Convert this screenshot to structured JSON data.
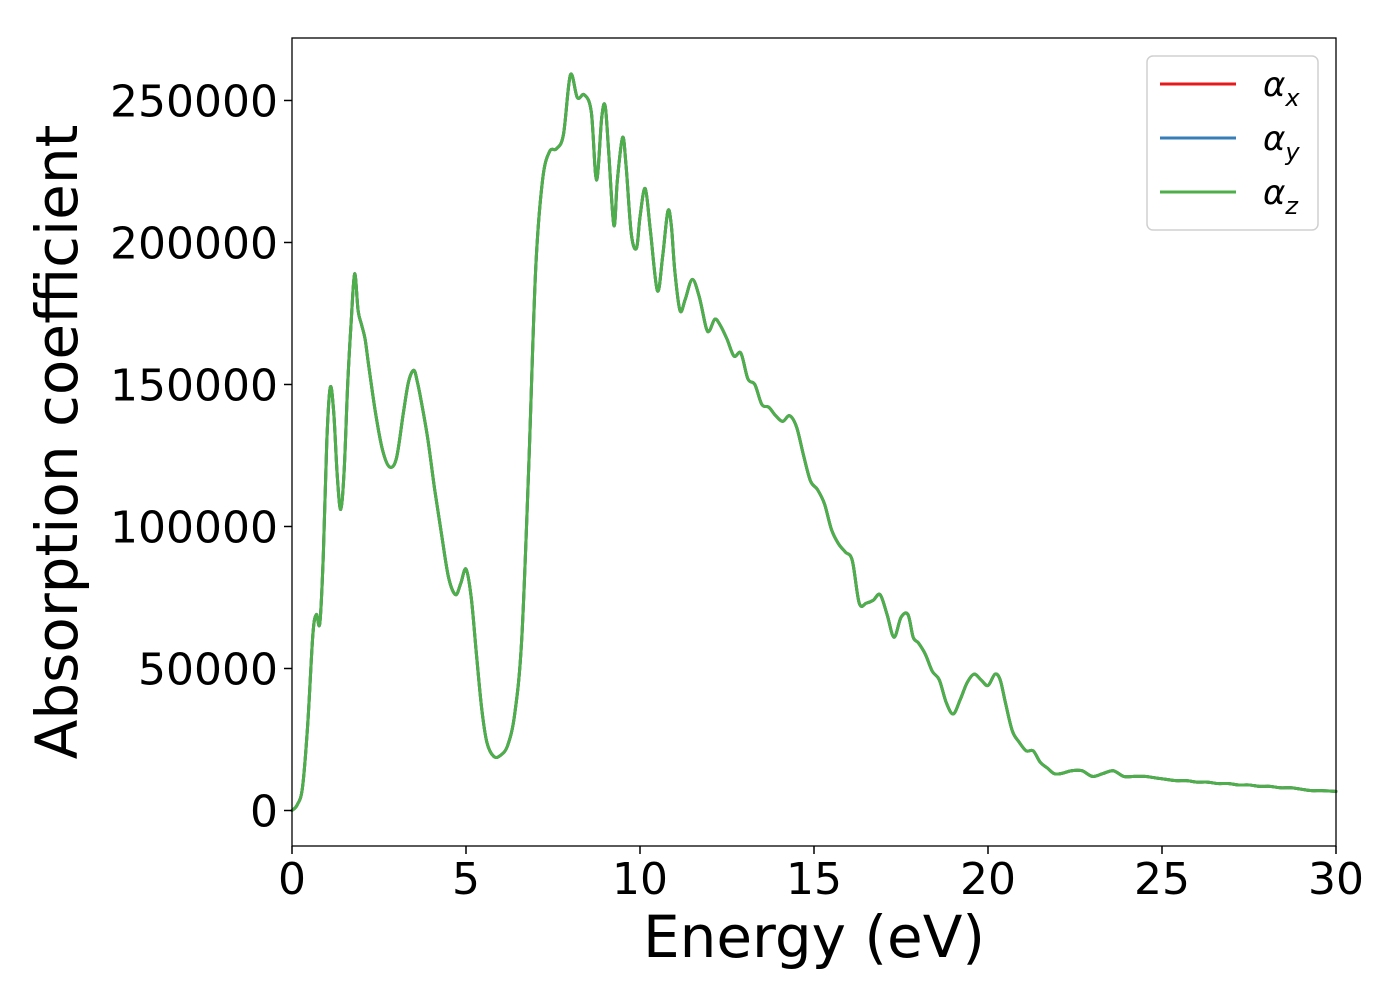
{
  "chart_data": {
    "type": "line",
    "title": "",
    "xlabel": "Energy (eV)",
    "ylabel": "Absorption coefficient",
    "xlim": [
      0,
      30
    ],
    "ylim": [
      -12500,
      272000
    ],
    "xticks": [
      0,
      5,
      10,
      15,
      20,
      25,
      30
    ],
    "yticks": [
      0,
      50000,
      100000,
      150000,
      200000,
      250000
    ],
    "xtick_labels": [
      "0",
      "5",
      "10",
      "15",
      "20",
      "25",
      "30"
    ],
    "ytick_labels": [
      "0",
      "50000",
      "100000",
      "150000",
      "200000",
      "250000"
    ],
    "grid": false,
    "legend_position": "top-right",
    "x": [
      0.0,
      0.15,
      0.3,
      0.45,
      0.6,
      0.7,
      0.8,
      0.9,
      1.0,
      1.1,
      1.2,
      1.3,
      1.4,
      1.5,
      1.6,
      1.7,
      1.8,
      1.9,
      2.0,
      2.1,
      2.2,
      2.4,
      2.6,
      2.8,
      3.0,
      3.2,
      3.35,
      3.5,
      3.6,
      3.7,
      3.9,
      4.1,
      4.3,
      4.5,
      4.7,
      4.85,
      5.0,
      5.15,
      5.3,
      5.45,
      5.6,
      5.8,
      6.0,
      6.2,
      6.4,
      6.6,
      6.8,
      7.0,
      7.2,
      7.4,
      7.6,
      7.8,
      8.0,
      8.2,
      8.4,
      8.6,
      8.75,
      8.9,
      9.0,
      9.1,
      9.25,
      9.35,
      9.5,
      9.6,
      9.75,
      9.9,
      10.0,
      10.15,
      10.3,
      10.5,
      10.65,
      10.8,
      10.9,
      11.0,
      11.15,
      11.3,
      11.5,
      11.7,
      11.9,
      12.0,
      12.15,
      12.3,
      12.5,
      12.7,
      12.9,
      13.1,
      13.3,
      13.5,
      13.7,
      13.9,
      14.1,
      14.3,
      14.5,
      14.7,
      14.9,
      15.1,
      15.3,
      15.5,
      15.7,
      15.9,
      16.1,
      16.3,
      16.5,
      16.7,
      16.9,
      17.1,
      17.3,
      17.5,
      17.7,
      17.85,
      18.0,
      18.2,
      18.4,
      18.6,
      18.8,
      19.0,
      19.2,
      19.4,
      19.6,
      19.8,
      20.0,
      20.2,
      20.35,
      20.5,
      20.7,
      20.9,
      21.1,
      21.3,
      21.5,
      21.7,
      21.9,
      22.1,
      22.4,
      22.7,
      23.0,
      23.3,
      23.6,
      23.9,
      24.2,
      24.5,
      24.8,
      25.1,
      25.4,
      25.7,
      26.0,
      26.3,
      26.6,
      26.9,
      27.2,
      27.5,
      27.8,
      28.1,
      28.4,
      28.7,
      29.0,
      29.3,
      29.6,
      30.0
    ],
    "series": [
      {
        "name": "α_x",
        "label_main": "α",
        "label_sub": "x",
        "color": "#e41a1c",
        "values": [
          0,
          2000,
          8000,
          30000,
          62000,
          69000,
          66000,
          90000,
          130000,
          149000,
          140000,
          118000,
          106000,
          120000,
          150000,
          172000,
          189000,
          176000,
          171000,
          166000,
          157000,
          140000,
          127000,
          121000,
          124000,
          140000,
          151000,
          155000,
          151000,
          145000,
          131000,
          113000,
          97000,
          82000,
          76000,
          80000,
          85000,
          75000,
          55000,
          36000,
          24000,
          19000,
          19500,
          23000,
          34000,
          60000,
          120000,
          190000,
          222000,
          232000,
          233000,
          238000,
          259000,
          251000,
          252000,
          246000,
          222000,
          244000,
          248000,
          232000,
          206000,
          222000,
          237000,
          227000,
          203000,
          198000,
          209000,
          219000,
          204000,
          183000,
          195000,
          211000,
          206000,
          190000,
          176000,
          180000,
          187000,
          181000,
          170000,
          169000,
          173000,
          171000,
          166000,
          160000,
          161000,
          152000,
          150000,
          143000,
          142000,
          139000,
          137000,
          139000,
          135000,
          125000,
          116000,
          113000,
          108000,
          99000,
          94000,
          91000,
          88000,
          73000,
          73000,
          74000,
          76000,
          69000,
          61000,
          68000,
          69000,
          61000,
          59000,
          55000,
          49000,
          46000,
          38000,
          34000,
          39000,
          45000,
          48000,
          46000,
          44000,
          48000,
          46000,
          38000,
          28000,
          24000,
          21000,
          21000,
          17000,
          15000,
          13000,
          13000,
          14000,
          14000,
          12000,
          13000,
          14000,
          12000,
          12000,
          12000,
          11500,
          11000,
          10500,
          10500,
          10000,
          10000,
          9500,
          9500,
          9000,
          9000,
          8500,
          8500,
          8000,
          8000,
          7500,
          7000,
          7000,
          6700
        ]
      },
      {
        "name": "α_y",
        "label_main": "α",
        "label_sub": "y",
        "color": "#377eb8",
        "values": [
          0,
          2000,
          8000,
          30000,
          62000,
          69000,
          66000,
          90000,
          130000,
          149000,
          140000,
          118000,
          106000,
          120000,
          150000,
          172000,
          189000,
          176000,
          171000,
          166000,
          157000,
          140000,
          127000,
          121000,
          124000,
          140000,
          151000,
          155000,
          151000,
          145000,
          131000,
          113000,
          97000,
          82000,
          76000,
          80000,
          85000,
          75000,
          55000,
          36000,
          24000,
          19000,
          19500,
          23000,
          34000,
          60000,
          120000,
          190000,
          222000,
          232000,
          233000,
          238000,
          259000,
          251000,
          252000,
          246000,
          222000,
          244000,
          248000,
          232000,
          206000,
          222000,
          237000,
          227000,
          203000,
          198000,
          209000,
          219000,
          204000,
          183000,
          195000,
          211000,
          206000,
          190000,
          176000,
          180000,
          187000,
          181000,
          170000,
          169000,
          173000,
          171000,
          166000,
          160000,
          161000,
          152000,
          150000,
          143000,
          142000,
          139000,
          137000,
          139000,
          135000,
          125000,
          116000,
          113000,
          108000,
          99000,
          94000,
          91000,
          88000,
          73000,
          73000,
          74000,
          76000,
          69000,
          61000,
          68000,
          69000,
          61000,
          59000,
          55000,
          49000,
          46000,
          38000,
          34000,
          39000,
          45000,
          48000,
          46000,
          44000,
          48000,
          46000,
          38000,
          28000,
          24000,
          21000,
          21000,
          17000,
          15000,
          13000,
          13000,
          14000,
          14000,
          12000,
          13000,
          14000,
          12000,
          12000,
          12000,
          11500,
          11000,
          10500,
          10500,
          10000,
          10000,
          9500,
          9500,
          9000,
          9000,
          8500,
          8500,
          8000,
          8000,
          7500,
          7000,
          7000,
          6700
        ]
      },
      {
        "name": "α_z",
        "label_main": "α",
        "label_sub": "z",
        "color": "#4daf4a",
        "values": [
          0,
          2000,
          8000,
          30000,
          62000,
          69000,
          66000,
          90000,
          130000,
          149000,
          140000,
          118000,
          106000,
          120000,
          150000,
          172000,
          189000,
          176000,
          171000,
          166000,
          157000,
          140000,
          127000,
          121000,
          124000,
          140000,
          151000,
          155000,
          151000,
          145000,
          131000,
          113000,
          97000,
          82000,
          76000,
          80000,
          85000,
          75000,
          55000,
          36000,
          24000,
          19000,
          19500,
          23000,
          34000,
          60000,
          120000,
          190000,
          222000,
          232000,
          233000,
          238000,
          259000,
          251000,
          252000,
          246000,
          222000,
          244000,
          248000,
          232000,
          206000,
          222000,
          237000,
          227000,
          203000,
          198000,
          209000,
          219000,
          204000,
          183000,
          195000,
          211000,
          206000,
          190000,
          176000,
          180000,
          187000,
          181000,
          170000,
          169000,
          173000,
          171000,
          166000,
          160000,
          161000,
          152000,
          150000,
          143000,
          142000,
          139000,
          137000,
          139000,
          135000,
          125000,
          116000,
          113000,
          108000,
          99000,
          94000,
          91000,
          88000,
          73000,
          73000,
          74000,
          76000,
          69000,
          61000,
          68000,
          69000,
          61000,
          59000,
          55000,
          49000,
          46000,
          38000,
          34000,
          39000,
          45000,
          48000,
          46000,
          44000,
          48000,
          46000,
          38000,
          28000,
          24000,
          21000,
          21000,
          17000,
          15000,
          13000,
          13000,
          14000,
          14000,
          12000,
          13000,
          14000,
          12000,
          12000,
          12000,
          11500,
          11000,
          10500,
          10500,
          10000,
          10000,
          9500,
          9500,
          9000,
          9000,
          8500,
          8500,
          8000,
          8000,
          7500,
          7000,
          7000,
          6700
        ]
      }
    ]
  }
}
